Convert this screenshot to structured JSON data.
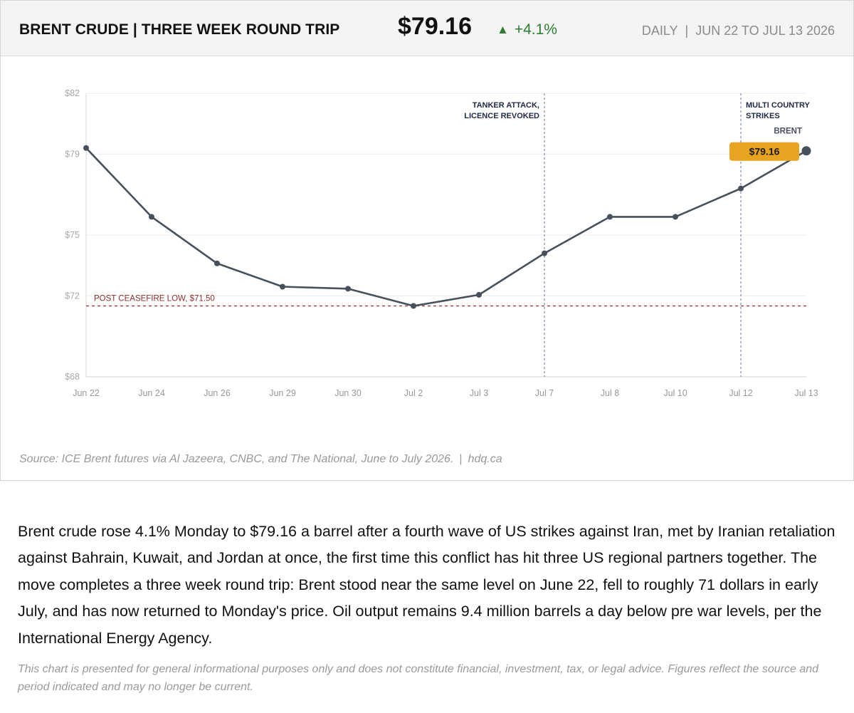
{
  "header": {
    "title": "BRENT CRUDE | THREE WEEK ROUND TRIP",
    "price": "$79.16",
    "change_arrow": "▲",
    "change": "+4.1%",
    "frequency": "DAILY",
    "separator": "|",
    "range": "JUN 22 TO JUL 13 2026",
    "change_color": "#2e7d32"
  },
  "chart_data": {
    "type": "line",
    "title": "BRENT CRUDE | THREE WEEK ROUND TRIP",
    "xlabel": "",
    "ylabel": "",
    "categories": [
      "Jun 22",
      "Jun 24",
      "Jun 26",
      "Jun 29",
      "Jun 30",
      "Jul 2",
      "Jul 3",
      "Jul 7",
      "Jul 8",
      "Jul 10",
      "Jul 12",
      "Jul 13"
    ],
    "series": [
      {
        "name": "BRENT",
        "values": [
          79.3,
          75.9,
          73.6,
          72.45,
          72.35,
          71.5,
          72.05,
          74.1,
          75.9,
          75.9,
          77.3,
          79.16
        ],
        "color": "#47505c"
      }
    ],
    "ylim": [
      68,
      82
    ],
    "yticks": [
      68,
      72,
      75,
      79,
      82
    ],
    "ytick_labels": [
      "$68",
      "$72",
      "$75",
      "$79",
      "$82"
    ],
    "grid": true,
    "reference_line": {
      "value": 71.5,
      "label": "POST CEASEFIRE LOW, $71.50",
      "color": "#8b2e2e"
    },
    "events": [
      {
        "category": "Jul 7",
        "label_lines": [
          "TANKER ATTACK,",
          "LICENCE REVOKED"
        ],
        "align": "right"
      },
      {
        "category": "Jul 12",
        "label_lines": [
          "MULTI COUNTRY",
          "STRIKES"
        ],
        "align": "left"
      }
    ],
    "end_label": {
      "series_name": "BRENT",
      "value_label": "$79.16",
      "badge_color": "#e8a321"
    }
  },
  "footer": {
    "source": "Source: ICE Brent futures via Al Jazeera, CNBC, and The National, June to July 2026.",
    "separator": "|",
    "site": "hdq.ca"
  },
  "article": {
    "text": "Brent crude rose 4.1% Monday to $79.16 a barrel after a fourth wave of US strikes against Iran, met by Iranian retaliation against Bahrain, Kuwait, and Jordan at once, the first time this conflict has hit three US regional partners together. The move completes a three week round trip: Brent stood near the same level on June 22, fell to roughly 71 dollars in early July, and has now returned to Monday's price. Oil output remains 9.4 million barrels a day below pre war levels, per the International Energy Agency.",
    "disclaimer": "This chart is presented for general informational purposes only and does not constitute financial, investment, tax, or legal advice. Figures reflect the source and period indicated and may no longer be current."
  }
}
